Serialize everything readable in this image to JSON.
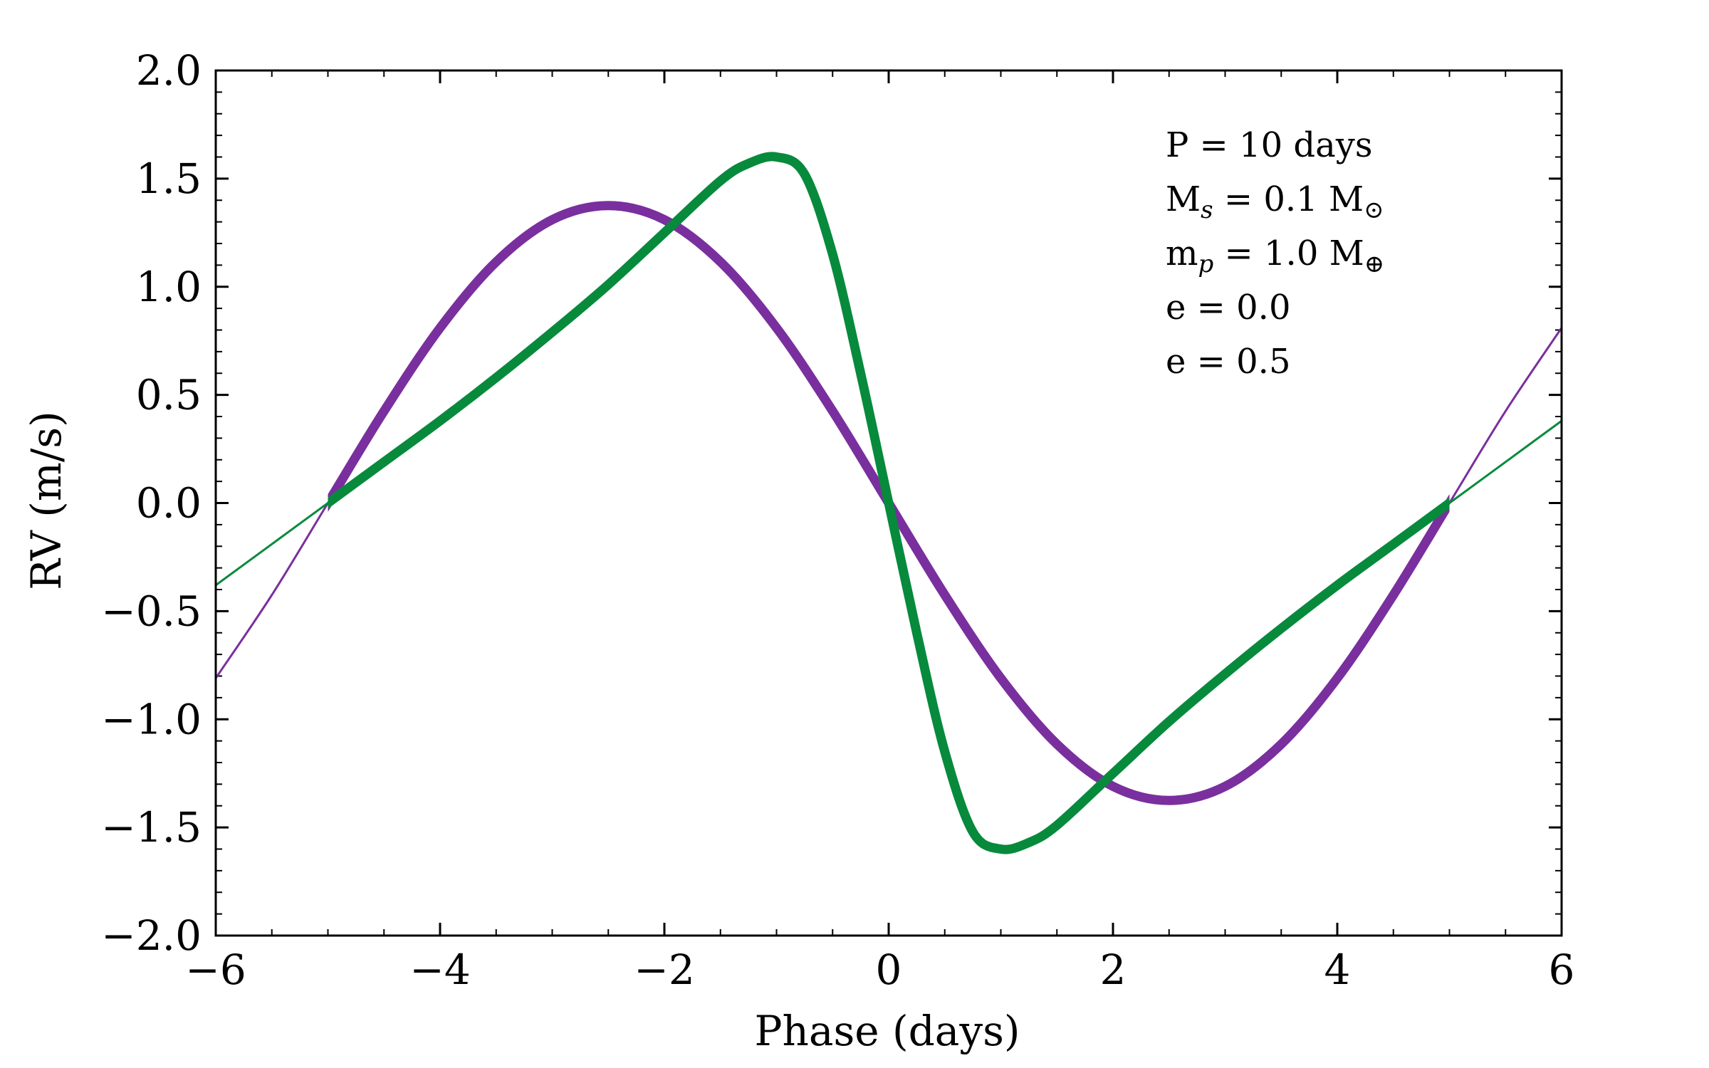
{
  "chart_data": {
    "type": "line",
    "xlabel": "Phase (days)",
    "ylabel": "RV (m/s)",
    "xlim": [
      -6,
      6
    ],
    "ylim": [
      -2.0,
      2.0
    ],
    "xticks": [
      -6,
      -4,
      -2,
      0,
      2,
      4,
      6
    ],
    "xtick_labels": [
      "−6",
      "−4",
      "−2",
      "0",
      "2",
      "4",
      "6"
    ],
    "yticks": [
      -2.0,
      -1.5,
      -1.0,
      -0.5,
      0.0,
      0.5,
      1.0,
      1.5,
      2.0
    ],
    "ytick_labels": [
      "−2.0",
      "−1.5",
      "−1.0",
      "−0.5",
      "0.0",
      "0.5",
      "1.0",
      "1.5",
      "2.0"
    ],
    "grid": false,
    "annotations": {
      "period": "P = 10 days",
      "star_mass": {
        "base": "M",
        "sub": "s",
        "rest": " = 0.1 M",
        "unit_sub": "⊙"
      },
      "planet_mass": {
        "base": "m",
        "sub": "p",
        "rest": " = 1.0 M",
        "unit_sub": "⊕"
      }
    },
    "series": [
      {
        "name": "e = 0.0",
        "color": "#7a2f9e",
        "thick_range": [
          -5,
          5
        ],
        "x": [
          -6.0,
          -5.5,
          -5.0,
          -4.5,
          -4.0,
          -3.5,
          -3.0,
          -2.5,
          -2.0,
          -1.5,
          -1.0,
          -0.5,
          0.0,
          0.5,
          1.0,
          1.5,
          2.0,
          2.5,
          3.0,
          3.5,
          4.0,
          4.5,
          5.0,
          5.5,
          6.0
        ],
        "y": [
          -0.81,
          -0.425,
          0.0,
          0.425,
          0.81,
          1.115,
          1.31,
          1.375,
          1.31,
          1.115,
          0.81,
          0.425,
          0.0,
          -0.425,
          -0.81,
          -1.115,
          -1.31,
          -1.375,
          -1.31,
          -1.115,
          -0.81,
          -0.425,
          0.0,
          0.425,
          0.81
        ]
      },
      {
        "name": "e = 0.5",
        "color": "#078a3c",
        "thick_range": [
          -5,
          5
        ],
        "x": [
          -6.0,
          -5.5,
          -5.0,
          -4.5,
          -4.0,
          -3.5,
          -3.0,
          -2.5,
          -2.0,
          -1.5,
          -1.25,
          -1.0,
          -0.75,
          -0.5,
          -0.25,
          0.0,
          0.25,
          0.5,
          0.75,
          1.0,
          1.25,
          1.5,
          2.0,
          2.5,
          3.0,
          3.5,
          4.0,
          4.5,
          5.0,
          5.5,
          6.0
        ],
        "y": [
          -0.38,
          -0.19,
          0.0,
          0.19,
          0.38,
          0.58,
          0.79,
          1.01,
          1.25,
          1.49,
          1.57,
          1.6,
          1.52,
          1.15,
          0.6,
          0.0,
          -0.6,
          -1.15,
          -1.52,
          -1.6,
          -1.57,
          -1.49,
          -1.25,
          -1.01,
          -0.79,
          -0.58,
          -0.38,
          -0.19,
          0.0,
          0.19,
          0.38
        ]
      }
    ]
  }
}
